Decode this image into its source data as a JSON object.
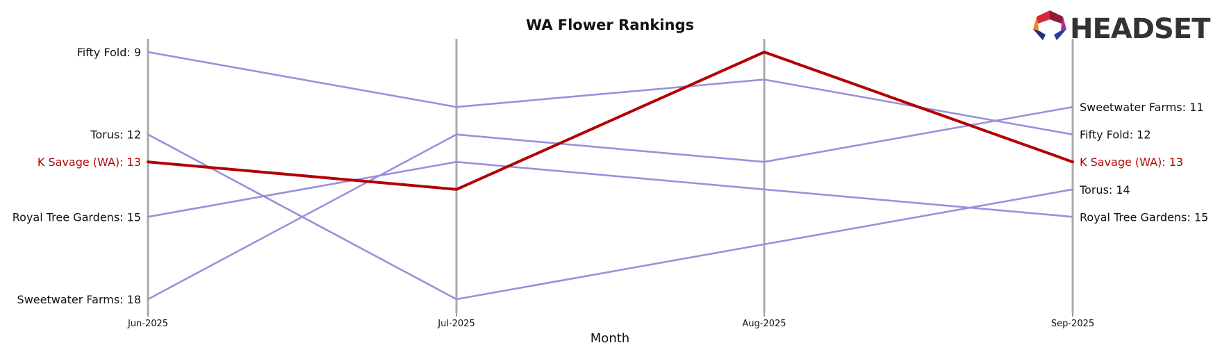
{
  "logo": {
    "text": "HEADSET"
  },
  "chart_data": {
    "type": "line",
    "title": "WA Flower Rankings",
    "xlabel": "Month",
    "ylabel": "",
    "categories": [
      "Jun-2025",
      "Jul-2025",
      "Aug-2025",
      "Sep-2025"
    ],
    "ylim": [
      8.6,
      18.5
    ],
    "y_inverted": true,
    "grid": false,
    "highlight_color": "#b30000",
    "base_color": "#9b8fdb",
    "axis_color": "#aaaaaa",
    "series": [
      {
        "name": "Fifty Fold",
        "values": [
          9,
          11,
          10,
          12
        ],
        "highlight": false,
        "start_label": "Fifty Fold: 9",
        "end_label": "Fifty Fold: 12"
      },
      {
        "name": "Torus",
        "values": [
          12,
          18,
          16,
          14
        ],
        "highlight": false,
        "start_label": "Torus: 12",
        "end_label": "Torus: 14"
      },
      {
        "name": "Royal Tree Gardens",
        "values": [
          15,
          13,
          14,
          15
        ],
        "highlight": false,
        "start_label": "Royal Tree Gardens: 15",
        "end_label": "Royal Tree Gardens: 15"
      },
      {
        "name": "Sweetwater Farms",
        "values": [
          18,
          12,
          13,
          11
        ],
        "highlight": false,
        "start_label": "Sweetwater Farms: 18",
        "end_label": "Sweetwater Farms: 11"
      },
      {
        "name": "K Savage (WA)",
        "values": [
          13,
          14,
          9,
          13
        ],
        "highlight": true,
        "start_label": "K Savage (WA): 13",
        "end_label": "K Savage (WA): 13"
      }
    ]
  }
}
